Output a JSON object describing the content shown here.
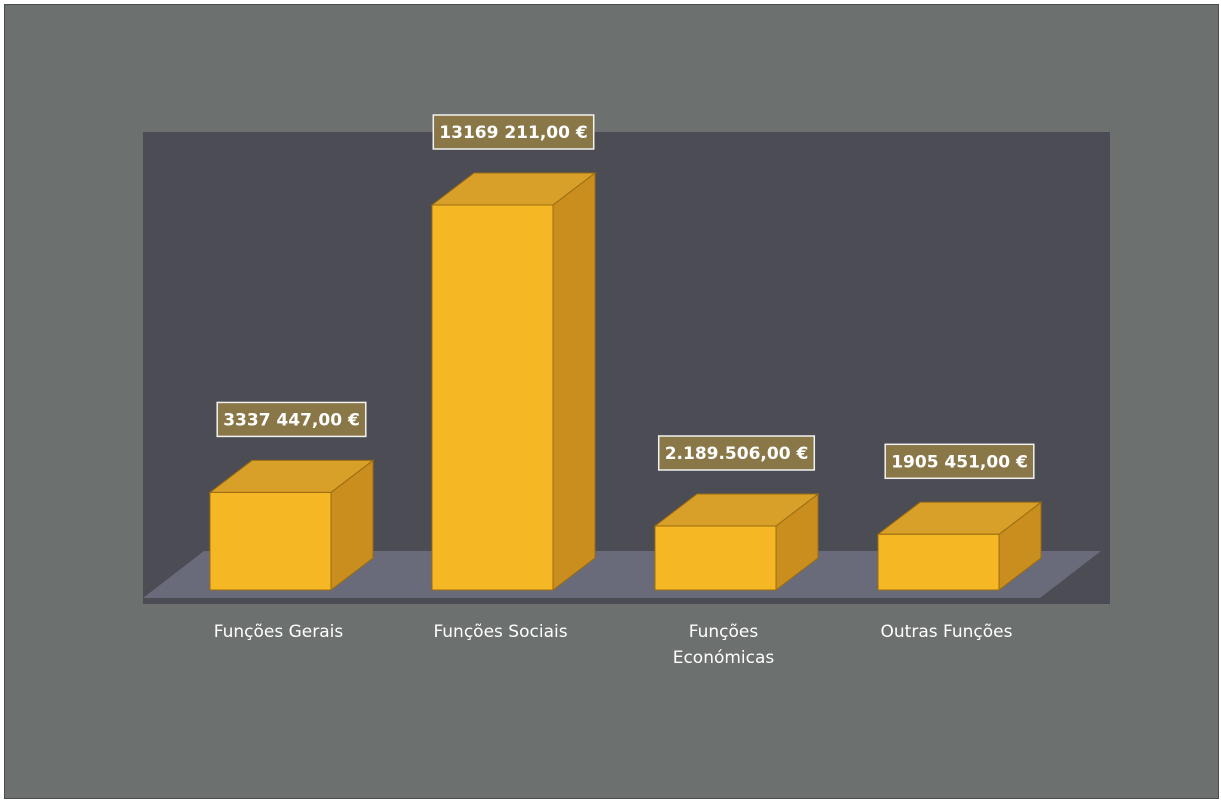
{
  "chart_data": {
    "type": "bar",
    "style": "3d-column",
    "categories": [
      [
        "Funções Gerais"
      ],
      [
        "Funções Sociais"
      ],
      [
        "Funções",
        "Económicas"
      ],
      [
        "Outras Funções"
      ]
    ],
    "values": [
      3337447,
      13169211,
      2189506,
      1905451
    ],
    "data_labels": [
      "3337 447,00 €",
      "13169 211,00 €",
      "2.189.506,00 €",
      "1905 451,00 €"
    ],
    "title": "",
    "xlabel": "",
    "ylabel": "",
    "grid": false,
    "legend": "none"
  },
  "colors": {
    "background": "#6c706f",
    "plot_area": "#4b4c54",
    "floor": "#6a6b7a",
    "bar_front": "#f6b724",
    "bar_top": "#d9a029",
    "bar_side": "#c98e1d",
    "bar_edge": "#9a6c12",
    "label_box": "#8a7747",
    "label_border": "#f2f2f2",
    "text": "#ffffff"
  }
}
